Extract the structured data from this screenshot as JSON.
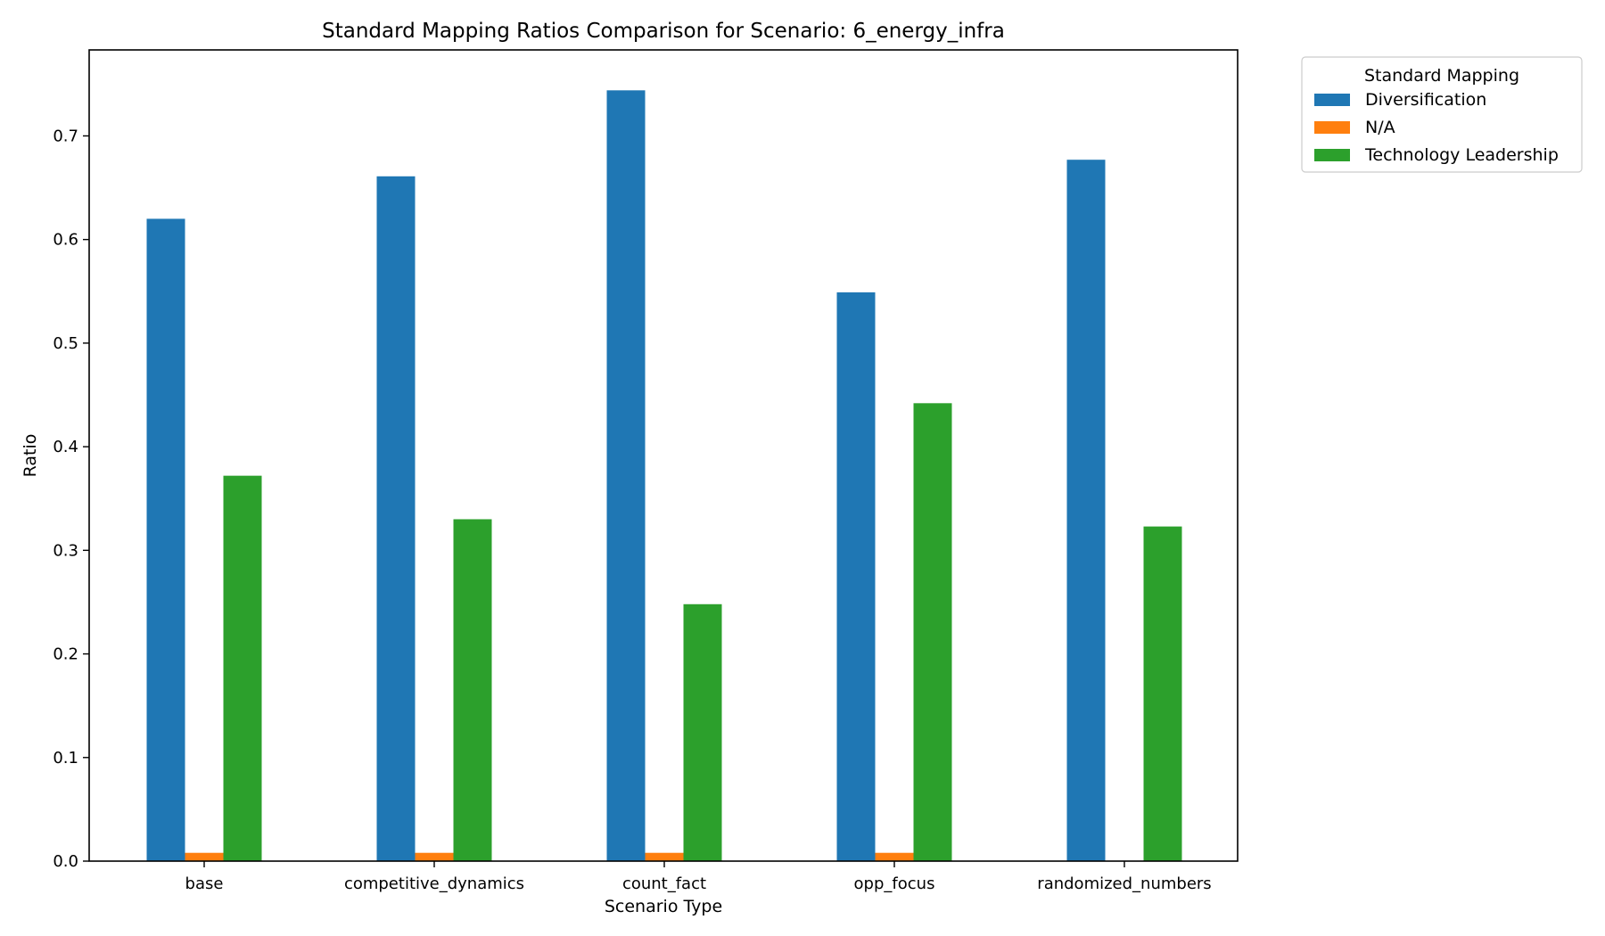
{
  "chart_data": {
    "type": "bar",
    "title": "Standard Mapping Ratios Comparison for Scenario: 6_energy_infra",
    "xlabel": "Scenario Type",
    "ylabel": "Ratio",
    "categories": [
      "base",
      "competitive_dynamics",
      "count_fact",
      "opp_focus",
      "randomized_numbers"
    ],
    "series": [
      {
        "name": "Diversification",
        "color": "#1f77b4",
        "values": [
          0.62,
          0.661,
          0.744,
          0.549,
          0.677
        ]
      },
      {
        "name": "N/A",
        "color": "#ff7f0e",
        "values": [
          0.008,
          0.008,
          0.008,
          0.008,
          0.0
        ]
      },
      {
        "name": "Technology Leadership",
        "color": "#2ca02c",
        "values": [
          0.372,
          0.33,
          0.248,
          0.442,
          0.323
        ]
      }
    ],
    "ylim": [
      0,
      0.783
    ],
    "yticks": [
      "0.0",
      "0.1",
      "0.2",
      "0.3",
      "0.4",
      "0.5",
      "0.6",
      "0.7"
    ],
    "legend": {
      "title": "Standard Mapping",
      "placement": "outside-top-right"
    },
    "grid": false
  }
}
